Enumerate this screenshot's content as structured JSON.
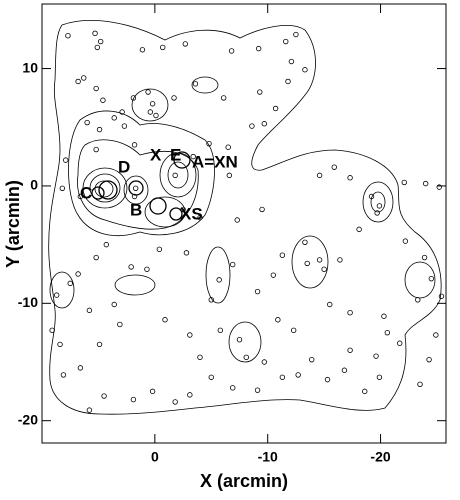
{
  "chart_data": {
    "type": "scatter",
    "x_label": "X (arcmin)",
    "y_label": "Y (arcmin)",
    "xlim": [
      10,
      -25.8
    ],
    "ylim": [
      -21.9,
      15.5
    ],
    "xticks": [
      0,
      -10,
      -20
    ],
    "yticks": [
      -20,
      -10,
      0,
      10
    ],
    "color": "#000000",
    "annotations": [
      "D",
      "X",
      "E",
      "A=XN",
      "C",
      "B",
      "XS"
    ],
    "x": [
      5.3,
      4.8,
      5.1,
      7.7,
      1.1,
      -0.7,
      -2.7,
      -6.8,
      -9.2,
      -11.6,
      -12.5,
      -12.1,
      -13.3,
      6.8,
      6.3,
      4.6,
      5.2,
      1.9,
      0.6,
      0.2,
      0.4,
      -0.1,
      2.7,
      3.6,
      2.9,
      -1.7,
      -3.6,
      -6.1,
      -9.3,
      -10.7,
      -11.8,
      -8.6,
      -9.7,
      -6.5,
      4.9,
      6.0,
      5.2,
      1.8,
      7.9,
      8.2,
      6.6,
      1.7,
      1.8,
      -1.8,
      -3.4,
      -4.8,
      -6.6,
      -2.5,
      -4.0,
      -7.3,
      -9.5,
      -14.6,
      -15.9,
      -17.3,
      -19.2,
      -19.9,
      -19.7,
      -22.1,
      -24.0,
      -25.2,
      -18.1,
      -22.2,
      -23.9,
      -24.5,
      -23.3,
      -25.4,
      -13.3,
      -13.5,
      -14.6,
      -15.0,
      -16.4,
      -11.3,
      -10.5,
      -9.1,
      -6.9,
      -5.7,
      -5.0,
      -2.8,
      -0.4,
      0.7,
      2.1,
      4.3,
      5.2,
      6.8,
      5.8,
      3.6,
      3.1,
      -0.9,
      -3.1,
      -4.0,
      -5.8,
      -7.5,
      -8.1,
      -10.9,
      -12.3,
      -15.5,
      -17.3,
      -20.3,
      -20.6,
      -21.7,
      -19.6,
      -17.3,
      -16.8,
      -15.3,
      -13.9,
      -12.7,
      -11.3,
      -9.7,
      -9.1,
      -6.9,
      -5.0,
      -3.1,
      -1.8,
      0.2,
      1.9,
      4.5,
      5.8,
      8.1,
      8.4,
      9.1,
      8.7,
      7.5,
      6.6,
      4.9,
      -23.5,
      -24.3,
      -24.9,
      -19.9,
      -18.6
    ],
    "values": [
      13.0,
      12.3,
      11.8,
      12.8,
      11.6,
      11.8,
      12.1,
      11.5,
      11.7,
      12.3,
      12.9,
      10.6,
      9.9,
      8.9,
      9.2,
      7.3,
      8.3,
      7.5,
      8.0,
      7.0,
      6.3,
      6.0,
      5.1,
      5.8,
      6.3,
      7.5,
      8.7,
      7.5,
      8.0,
      6.6,
      8.9,
      5.1,
      5.3,
      3.3,
      4.8,
      5.4,
      3.1,
      3.5,
      2.2,
      -0.2,
      -0.9,
      -0.2,
      -0.9,
      0.9,
      2.5,
      3.6,
      0.9,
      -2.0,
      -2.7,
      -2.9,
      -2.0,
      0.9,
      1.6,
      0.7,
      -0.9,
      -1.7,
      -2.3,
      0.3,
      0.2,
      -0.1,
      -3.7,
      -4.7,
      -6.1,
      -7.9,
      -9.7,
      -9.4,
      -4.8,
      -6.6,
      -6.3,
      -7.1,
      -6.3,
      -5.9,
      -7.6,
      -9.0,
      -6.7,
      -8.0,
      -9.7,
      -5.7,
      -5.4,
      -7.1,
      -6.9,
      -5.0,
      -6.1,
      -7.5,
      -10.6,
      -10.1,
      -11.8,
      -11.4,
      -12.7,
      -14.6,
      -12.3,
      -13.1,
      -14.6,
      -11.4,
      -12.3,
      -10.1,
      -10.8,
      -11.1,
      -12.5,
      -13.4,
      -14.5,
      -14.0,
      -15.7,
      -16.5,
      -14.8,
      -16.1,
      -16.3,
      -15.0,
      -17.4,
      -17.2,
      -16.3,
      -17.8,
      -18.4,
      -17.5,
      -18.2,
      -17.9,
      -19.1,
      -16.1,
      -13.5,
      -12.3,
      -9.3,
      -8.3,
      -15.5,
      -13.5,
      -16.9,
      -14.8,
      -12.7,
      -16.3,
      -17.5
    ]
  }
}
